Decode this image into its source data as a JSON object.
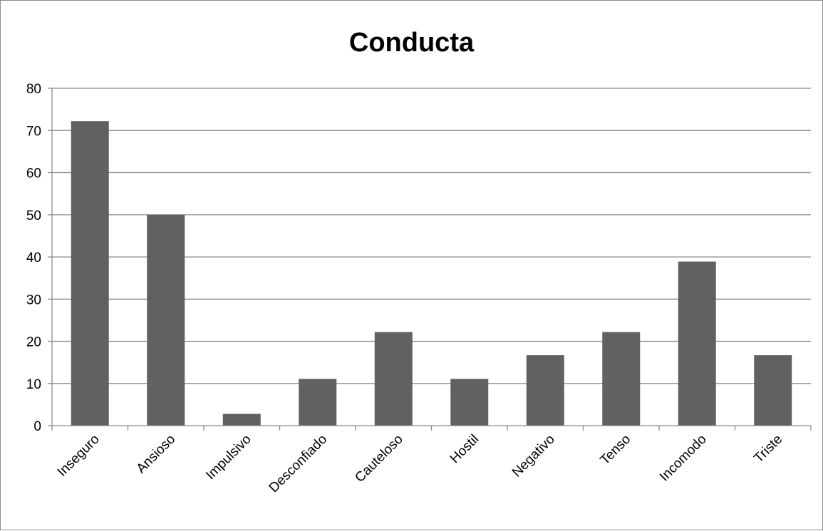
{
  "chart_data": {
    "type": "bar",
    "title": "Conducta",
    "xlabel": "",
    "ylabel": "",
    "categories": [
      "Inseguro",
      "Ansioso",
      "Impulsivo",
      "Desconfiado",
      "Cauteloso",
      "Hostil",
      "Negativo",
      "Tenso",
      "Incomodo",
      "Triste"
    ],
    "values": [
      72.2,
      50,
      2.8,
      11.1,
      22.2,
      11.1,
      16.7,
      22.2,
      38.9,
      16.7
    ],
    "ylim": [
      0,
      80
    ],
    "yticks": [
      0,
      10,
      20,
      30,
      40,
      50,
      60,
      70,
      80
    ],
    "grid": true,
    "legend": "none",
    "colors": {
      "bar": "#616161",
      "grid": "#8c8c8c",
      "axis": "#8c8c8c"
    }
  }
}
